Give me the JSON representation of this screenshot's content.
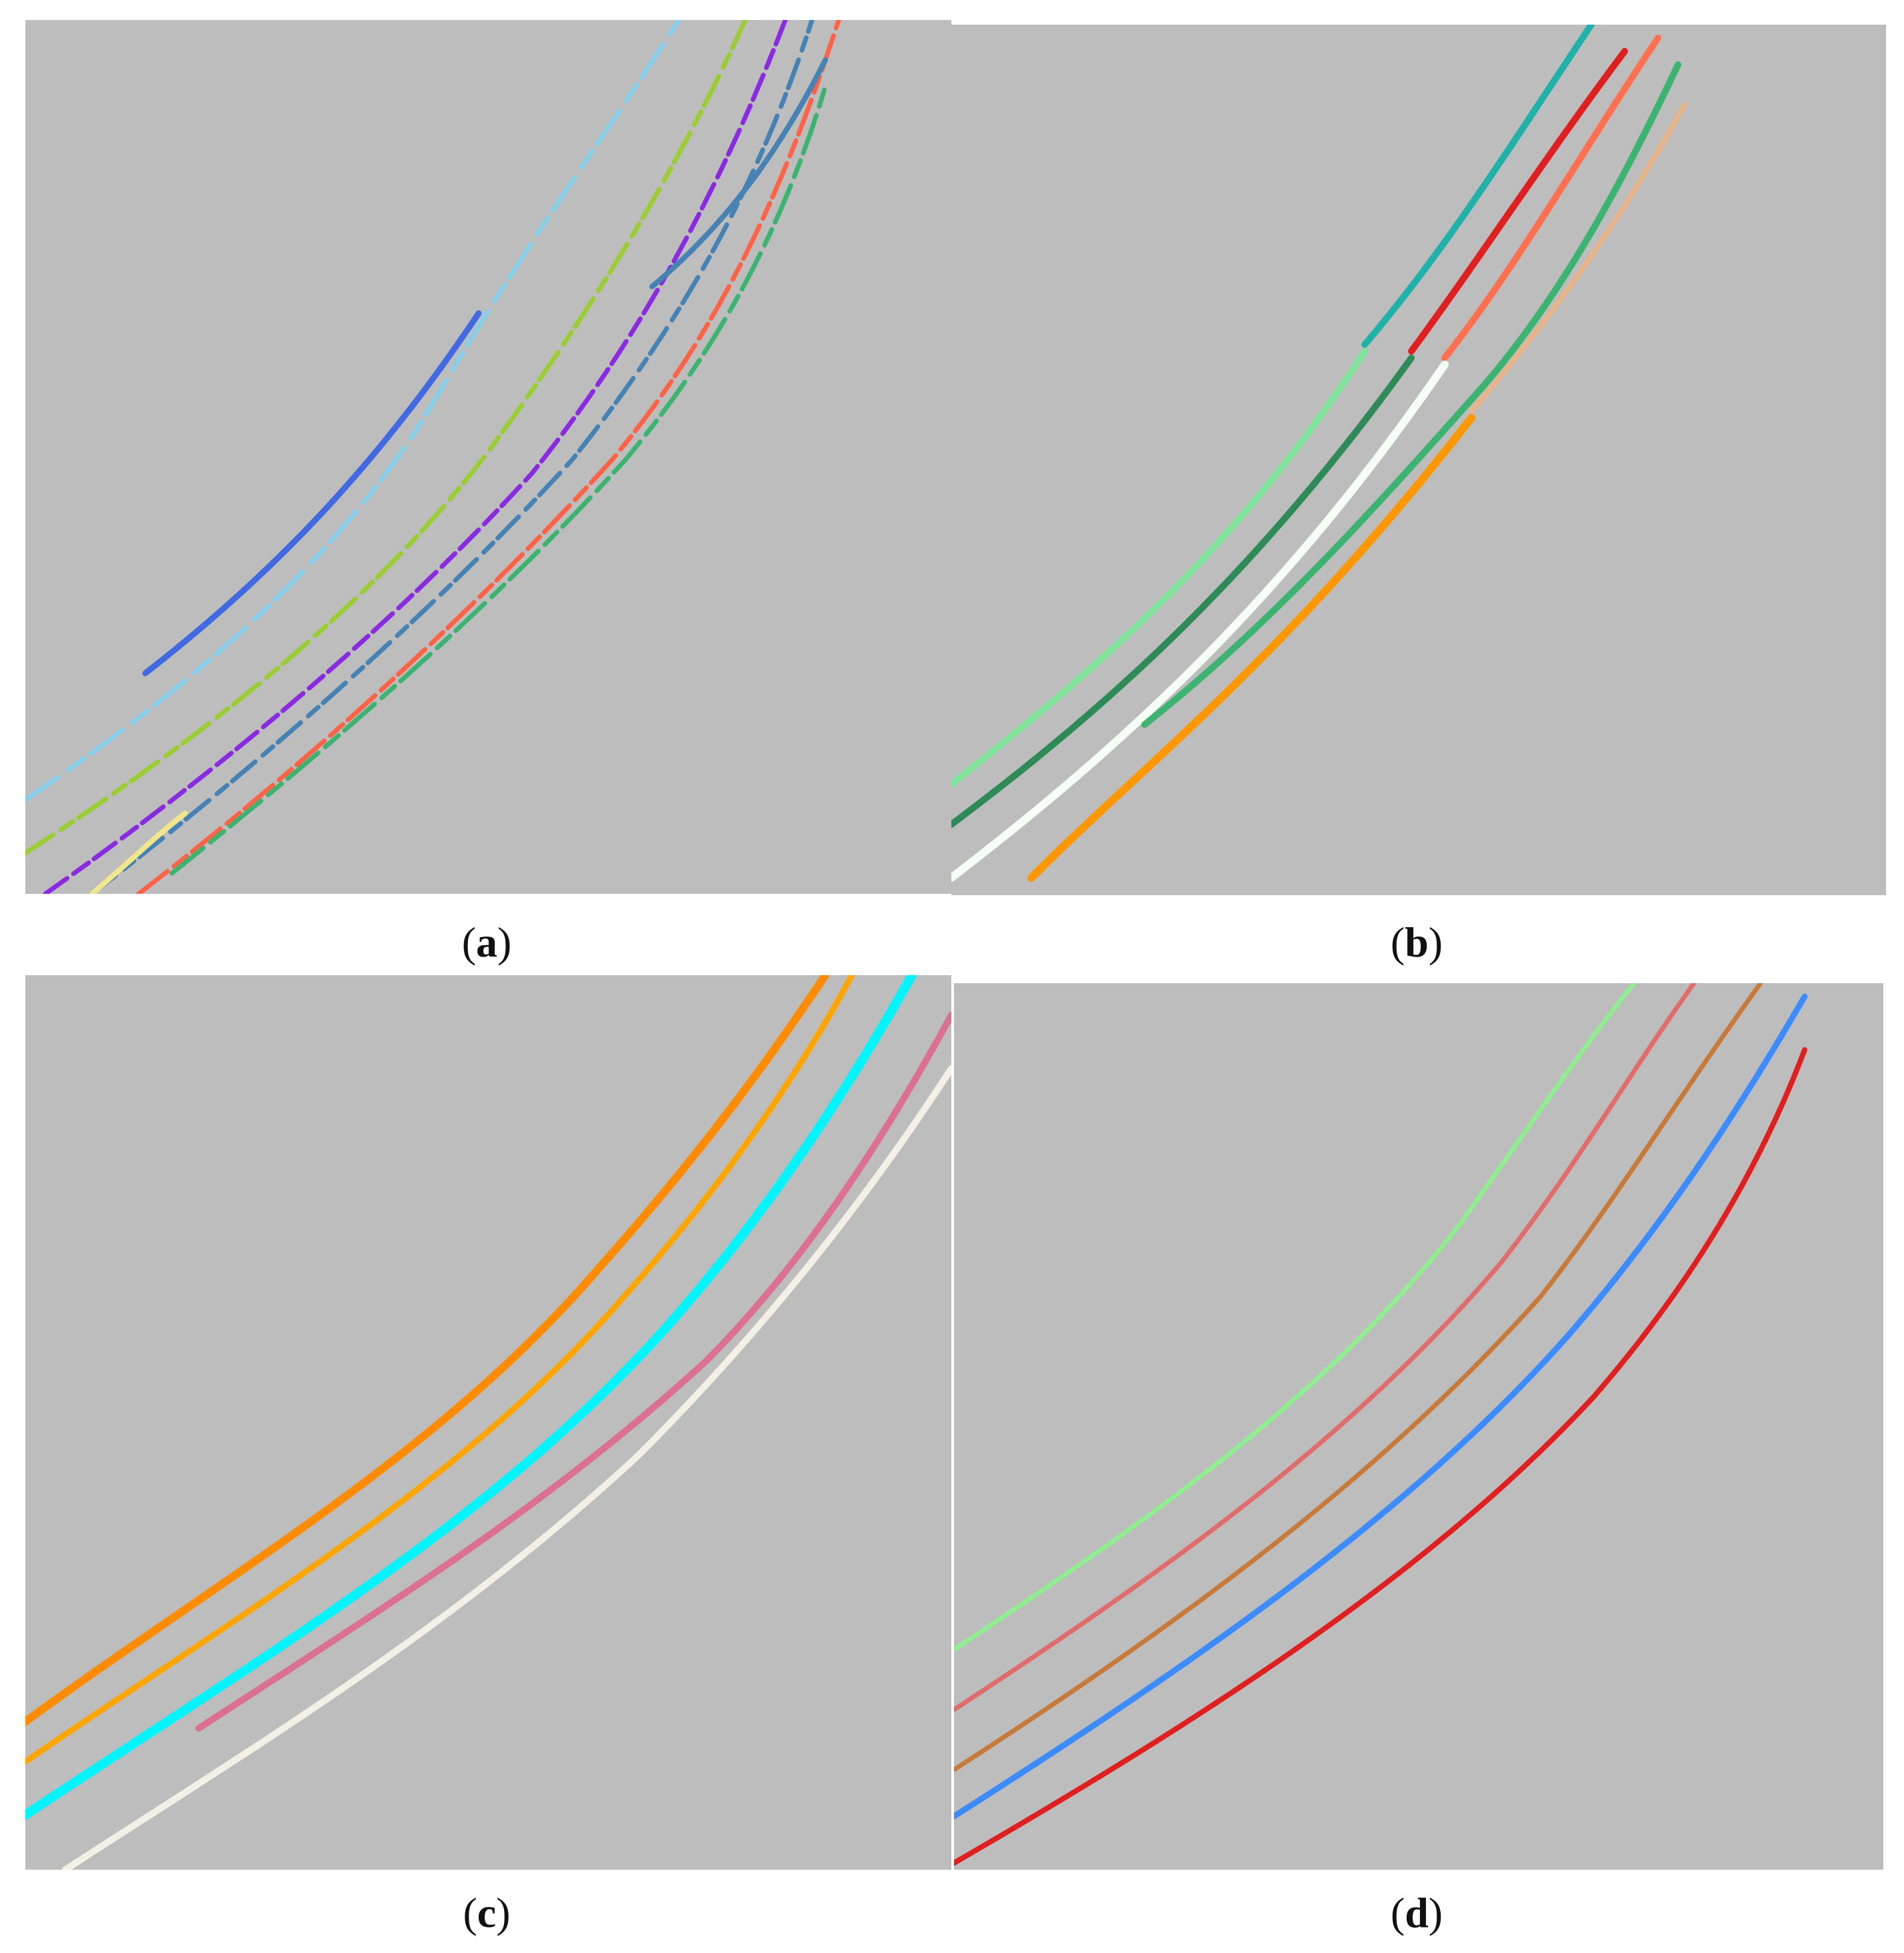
{
  "figure": {
    "background_color": "#bdbdbd",
    "panels": [
      {
        "id": "a",
        "caption_open": "(",
        "caption_letter": "a",
        "caption_close": ")",
        "description_kind": "fragmented multicolor lane-line segments",
        "colors": [
          "#87ceeb",
          "#9acd32",
          "#ff8c00",
          "#4169e1",
          "#8a2be2",
          "#3cb371",
          "#ff6347",
          "#f0e68c",
          "#4682b4",
          "#20b2aa"
        ]
      },
      {
        "id": "b",
        "caption_open": "(",
        "caption_letter": "b",
        "caption_close": ")",
        "colors": [
          "#20b2aa",
          "#e02020",
          "#ff7050",
          "#3cb371",
          "#e8b48a",
          "#7fe39a",
          "#2e8b57",
          "#f5fff5",
          "#ff9800"
        ]
      },
      {
        "id": "c",
        "caption_open": "(",
        "caption_letter": "c",
        "caption_close": ")",
        "colors": [
          "#ff8c00",
          "#ffa500",
          "#00f5ff",
          "#db7093",
          "#f5f0e6"
        ]
      },
      {
        "id": "d",
        "caption_open": "(",
        "caption_letter": "d",
        "caption_close": ")",
        "colors": [
          "#90ee90",
          "#e06c6c",
          "#c87a3a",
          "#3c8cff",
          "#e02020"
        ]
      }
    ]
  }
}
